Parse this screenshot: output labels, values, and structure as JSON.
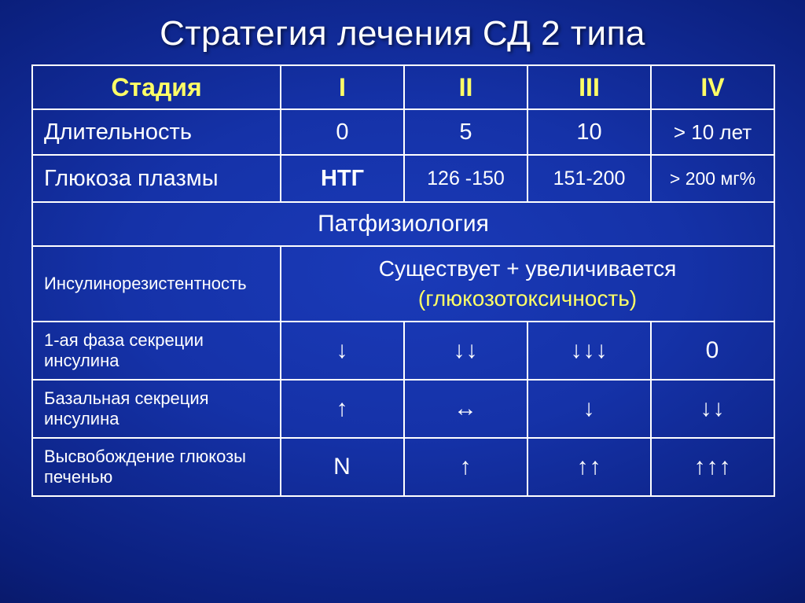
{
  "title": "Стратегия лечения СД 2 типа",
  "table": {
    "header": {
      "label": "Стадия",
      "cols": [
        "I",
        "II",
        "III",
        "IV"
      ]
    },
    "duration": {
      "label": "Длительность",
      "vals": [
        "0",
        "5",
        "10",
        "> 10 лет"
      ]
    },
    "glucose": {
      "label": "Глюкоза плазмы",
      "vals": [
        "НТГ",
        "126 -150",
        "151-200",
        "> 200 мг%"
      ]
    },
    "section": "Патфизиология",
    "ir": {
      "label": "Инсулинорезистентность",
      "line1": "Существует + увеличивается",
      "line2": "(глюкозотоксичность)"
    },
    "phase1": {
      "label": "1-ая фаза секреции инсулина",
      "vals": [
        "↓",
        "↓↓",
        "↓↓↓",
        "0"
      ]
    },
    "basal": {
      "label": "Базальная секреция инсулина",
      "vals": [
        "↑",
        "↔",
        "↓",
        "↓↓"
      ]
    },
    "liver": {
      "label": "Высвобождение глюкозы печенью",
      "vals": [
        "N",
        "↑",
        "↑↑",
        "↑↑↑"
      ]
    }
  },
  "colors": {
    "text": "#ffffff",
    "accent": "#ffff66",
    "border": "#ffffff"
  }
}
